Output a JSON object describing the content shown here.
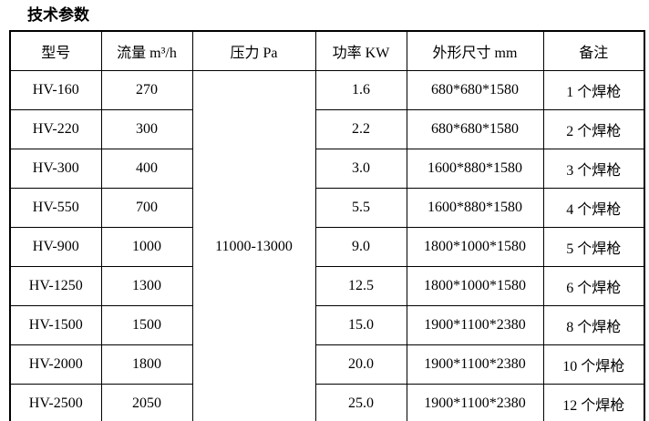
{
  "title": "技术参数",
  "table": {
    "headers": {
      "model": "型号",
      "flow": "流量 m³/h",
      "pressure": "压力 Pa",
      "power": "功率 KW",
      "dimensions": "外形尺寸 mm",
      "remark": "备注"
    },
    "pressure_merged_value": "11000-13000",
    "rows": [
      {
        "model": "HV-160",
        "flow": "270",
        "power": "1.6",
        "dimensions": "680*680*1580",
        "remark": "1 个焊枪"
      },
      {
        "model": "HV-220",
        "flow": "300",
        "power": "2.2",
        "dimensions": "680*680*1580",
        "remark": "2 个焊枪"
      },
      {
        "model": "HV-300",
        "flow": "400",
        "power": "3.0",
        "dimensions": "1600*880*1580",
        "remark": "3 个焊枪"
      },
      {
        "model": "HV-550",
        "flow": "700",
        "power": "5.5",
        "dimensions": "1600*880*1580",
        "remark": "4 个焊枪"
      },
      {
        "model": "HV-900",
        "flow": "1000",
        "power": "9.0",
        "dimensions": "1800*1000*1580",
        "remark": "5 个焊枪"
      },
      {
        "model": "HV-1250",
        "flow": "1300",
        "power": "12.5",
        "dimensions": "1800*1000*1580",
        "remark": "6 个焊枪"
      },
      {
        "model": "HV-1500",
        "flow": "1500",
        "power": "15.0",
        "dimensions": "1900*1100*2380",
        "remark": "8 个焊枪"
      },
      {
        "model": "HV-2000",
        "flow": "1800",
        "power": "20.0",
        "dimensions": "1900*1100*2380",
        "remark": "10 个焊枪"
      },
      {
        "model": "HV-2500",
        "flow": "2050",
        "power": "25.0",
        "dimensions": "1900*1100*2380",
        "remark": "12 个焊枪"
      }
    ],
    "border_color": "#000000",
    "background_color": "#ffffff",
    "text_color": "#000000"
  }
}
